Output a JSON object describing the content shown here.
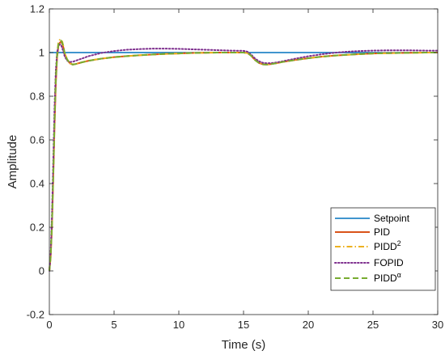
{
  "chart_data": {
    "type": "line",
    "title": "",
    "xlabel": "Time (s)",
    "ylabel": "Amplitude",
    "xlim": [
      0,
      30
    ],
    "ylim": [
      -0.2,
      1.2
    ],
    "xticks": [
      0,
      5,
      10,
      15,
      20,
      25,
      30
    ],
    "yticks": [
      -0.2,
      0,
      0.2,
      0.4,
      0.6,
      0.8,
      1,
      1.2
    ],
    "xtick_labels": [
      "0",
      "5",
      "10",
      "15",
      "20",
      "25",
      "30"
    ],
    "ytick_labels": [
      "-0.2",
      "0",
      "0.2",
      "0.4",
      "0.6",
      "0.8",
      "1",
      "1.2"
    ],
    "grid": false,
    "legend_position": "bottom-right",
    "series": [
      {
        "name": "Setpoint",
        "color": "#0072BD",
        "style": "solid",
        "x": [
          0,
          30
        ],
        "y": [
          1,
          1
        ]
      },
      {
        "name": "PID",
        "color": "#D95319",
        "style": "solid",
        "x": [
          0,
          0.1,
          0.2,
          0.3,
          0.4,
          0.5,
          0.6,
          0.7,
          0.8,
          0.9,
          1.0,
          1.1,
          1.2,
          1.4,
          1.6,
          1.8,
          2.0,
          2.5,
          3,
          4,
          5,
          6,
          7,
          8,
          9,
          10,
          11,
          12,
          13,
          14,
          15,
          15.3,
          15.6,
          15.9,
          16.2,
          16.5,
          16.8,
          17.2,
          17.6,
          18,
          19,
          20,
          21,
          22,
          23,
          24,
          25,
          26,
          27,
          28,
          29,
          30
        ],
        "y": [
          0,
          0.06,
          0.2,
          0.42,
          0.66,
          0.86,
          0.98,
          1.03,
          1.045,
          1.05,
          1.04,
          1.02,
          0.99,
          0.965,
          0.95,
          0.945,
          0.947,
          0.955,
          0.962,
          0.972,
          0.979,
          0.984,
          0.988,
          0.991,
          0.994,
          0.996,
          0.998,
          0.999,
          1.0,
          1.0,
          1.0,
          0.998,
          0.985,
          0.965,
          0.952,
          0.946,
          0.945,
          0.948,
          0.952,
          0.957,
          0.966,
          0.974,
          0.981,
          0.986,
          0.99,
          0.993,
          0.996,
          0.997,
          0.998,
          0.999,
          1.0,
          1.0
        ]
      },
      {
        "name": "PIDD2",
        "color": "#EDB120",
        "style": "dashdot",
        "x": [
          0,
          0.1,
          0.2,
          0.3,
          0.4,
          0.5,
          0.6,
          0.7,
          0.8,
          0.9,
          1.0,
          1.1,
          1.2,
          1.4,
          1.6,
          1.8,
          2.0,
          2.5,
          3,
          4,
          5,
          6,
          7,
          8,
          9,
          10,
          11,
          12,
          13,
          14,
          15,
          15.3,
          15.6,
          15.9,
          16.2,
          16.5,
          16.8,
          17.2,
          17.6,
          18,
          19,
          20,
          21,
          22,
          23,
          24,
          25,
          26,
          27,
          28,
          29,
          30
        ],
        "y": [
          0,
          0.07,
          0.22,
          0.45,
          0.7,
          0.9,
          1.0,
          1.045,
          1.058,
          1.06,
          1.05,
          1.025,
          0.995,
          0.967,
          0.952,
          0.946,
          0.948,
          0.955,
          0.963,
          0.972,
          0.979,
          0.984,
          0.988,
          0.991,
          0.994,
          0.996,
          0.998,
          0.999,
          1.0,
          1.0,
          1.0,
          0.998,
          0.986,
          0.966,
          0.953,
          0.947,
          0.946,
          0.949,
          0.953,
          0.958,
          0.967,
          0.975,
          0.981,
          0.986,
          0.99,
          0.993,
          0.996,
          0.997,
          0.998,
          0.999,
          1.0,
          1.0
        ]
      },
      {
        "name": "FOPID",
        "color": "#7E2F8E",
        "style": "dotted",
        "x": [
          0,
          0.1,
          0.2,
          0.3,
          0.4,
          0.5,
          0.6,
          0.7,
          0.8,
          0.9,
          1.0,
          1.1,
          1.2,
          1.4,
          1.6,
          1.8,
          2.0,
          2.5,
          3,
          4,
          5,
          6,
          7,
          8,
          9,
          10,
          11,
          12,
          13,
          14,
          15,
          15.3,
          15.6,
          15.9,
          16.2,
          16.5,
          16.8,
          17.2,
          17.6,
          18,
          19,
          20,
          21,
          22,
          23,
          24,
          25,
          26,
          27,
          28,
          29,
          30
        ],
        "y": [
          0,
          0.08,
          0.25,
          0.5,
          0.75,
          0.92,
          1.0,
          1.03,
          1.038,
          1.035,
          1.02,
          1.0,
          0.98,
          0.962,
          0.957,
          0.958,
          0.962,
          0.972,
          0.983,
          0.998,
          1.007,
          1.013,
          1.016,
          1.018,
          1.018,
          1.017,
          1.015,
          1.013,
          1.011,
          1.009,
          1.008,
          1.004,
          0.99,
          0.972,
          0.96,
          0.953,
          0.951,
          0.952,
          0.955,
          0.96,
          0.972,
          0.983,
          0.992,
          0.999,
          1.004,
          1.007,
          1.009,
          1.01,
          1.01,
          1.01,
          1.009,
          1.009
        ]
      },
      {
        "name": "PIDDα",
        "color": "#77AC30",
        "style": "dashed",
        "x": [
          0,
          0.1,
          0.2,
          0.3,
          0.4,
          0.5,
          0.6,
          0.7,
          0.8,
          0.9,
          1.0,
          1.1,
          1.2,
          1.4,
          1.6,
          1.8,
          2.0,
          2.5,
          3,
          4,
          5,
          6,
          7,
          8,
          9,
          10,
          11,
          12,
          13,
          14,
          15,
          15.3,
          15.6,
          15.9,
          16.2,
          16.5,
          16.8,
          17.2,
          17.6,
          18,
          19,
          20,
          21,
          22,
          23,
          24,
          25,
          26,
          27,
          28,
          29,
          30
        ],
        "y": [
          0,
          0.065,
          0.21,
          0.43,
          0.68,
          0.88,
          0.99,
          1.038,
          1.052,
          1.055,
          1.045,
          1.022,
          0.992,
          0.966,
          0.951,
          0.945,
          0.947,
          0.955,
          0.962,
          0.972,
          0.979,
          0.984,
          0.988,
          0.991,
          0.994,
          0.996,
          0.998,
          0.999,
          1.0,
          1.0,
          1.0,
          0.998,
          0.985,
          0.965,
          0.952,
          0.946,
          0.945,
          0.948,
          0.952,
          0.957,
          0.966,
          0.974,
          0.981,
          0.986,
          0.99,
          0.993,
          0.996,
          0.997,
          0.998,
          0.999,
          1.0,
          1.0
        ]
      }
    ],
    "legend_entries": [
      {
        "base": "Setpoint",
        "sup": ""
      },
      {
        "base": "PID",
        "sup": ""
      },
      {
        "base": "PIDD",
        "sup": "2"
      },
      {
        "base": "FOPID",
        "sup": ""
      },
      {
        "base": "PIDD",
        "sup": "α"
      }
    ]
  }
}
